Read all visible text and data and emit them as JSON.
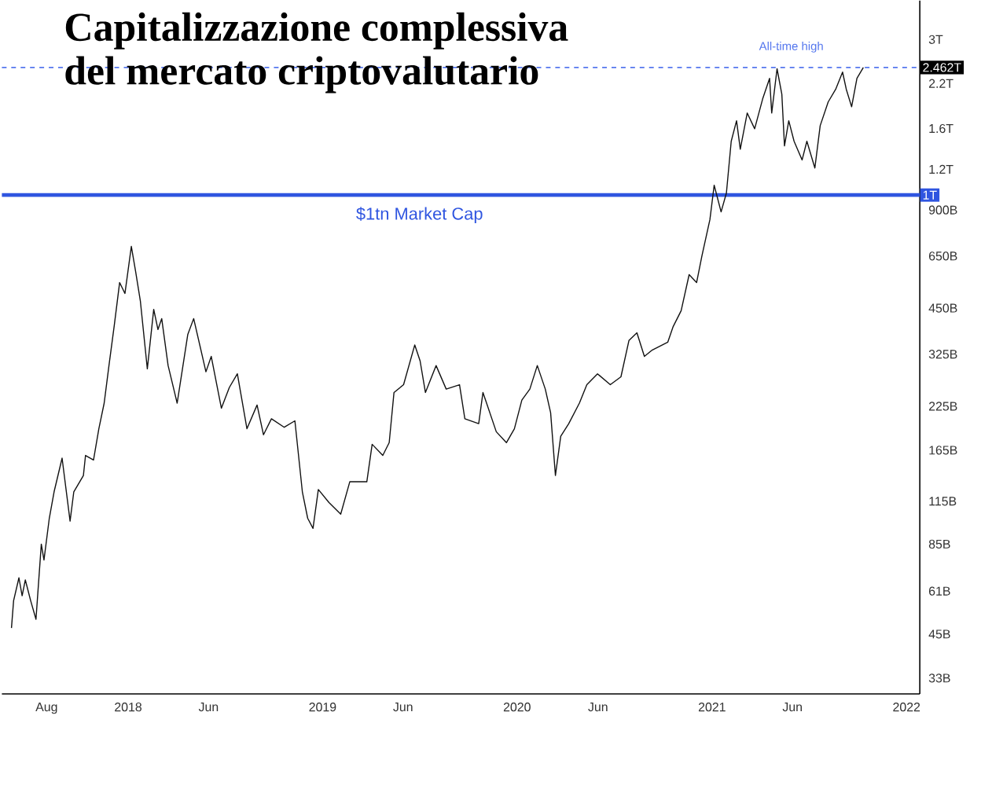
{
  "chart_data": {
    "type": "line",
    "title": "Capitalizzazione complessiva del mercato criptovalutario",
    "log": true,
    "color": "#111111",
    "x": [
      "2017-05-27",
      "2017-05-31",
      "2017-06-10",
      "2017-06-16",
      "2017-06-22",
      "2017-07-02",
      "2017-07-12",
      "2017-07-22",
      "2017-07-27",
      "2017-08-06",
      "2017-08-15",
      "2017-08-30",
      "2017-09-14",
      "2017-09-21",
      "2017-10-09",
      "2017-10-13",
      "2017-10-28",
      "2017-11-07",
      "2017-11-17",
      "2017-11-26",
      "2017-12-06",
      "2017-12-16",
      "2017-12-26",
      "2018-01-07",
      "2018-01-15",
      "2018-01-24",
      "2018-02-06",
      "2018-02-18",
      "2018-02-26",
      "2018-03-05",
      "2018-03-17",
      "2018-04-03",
      "2018-04-23",
      "2018-05-04",
      "2018-05-27",
      "2018-06-06",
      "2018-06-25",
      "2018-07-10",
      "2018-07-25",
      "2018-08-12",
      "2018-08-31",
      "2018-09-12",
      "2018-09-27",
      "2018-10-21",
      "2018-11-10",
      "2018-11-24",
      "2018-12-04",
      "2018-12-14",
      "2018-12-24",
      "2019-01-13",
      "2019-02-04",
      "2019-02-21",
      "2019-03-25",
      "2019-04-04",
      "2019-04-24",
      "2019-05-06",
      "2019-05-15",
      "2019-06-02",
      "2019-06-23",
      "2019-07-03",
      "2019-07-13",
      "2019-08-02",
      "2019-08-21",
      "2019-09-15",
      "2019-09-25",
      "2019-10-21",
      "2019-10-29",
      "2019-11-23",
      "2019-12-12",
      "2019-12-27",
      "2020-01-10",
      "2020-01-25",
      "2020-02-08",
      "2020-02-23",
      "2020-03-04",
      "2020-03-13",
      "2020-03-23",
      "2020-04-07",
      "2020-04-27",
      "2020-05-11",
      "2020-05-31",
      "2020-06-24",
      "2020-07-14",
      "2020-07-29",
      "2020-08-13",
      "2020-08-27",
      "2020-09-11",
      "2020-10-10",
      "2020-10-20",
      "2020-11-04",
      "2020-11-19",
      "2020-12-03",
      "2020-12-13",
      "2020-12-28",
      "2021-01-05",
      "2021-01-18",
      "2021-01-28",
      "2021-02-06",
      "2021-02-16",
      "2021-02-23",
      "2021-03-08",
      "2021-03-22",
      "2021-04-06",
      "2021-04-19",
      "2021-04-23",
      "2021-05-03",
      "2021-05-12",
      "2021-05-17",
      "2021-05-25",
      "2021-06-04",
      "2021-06-19",
      "2021-06-28",
      "2021-07-13",
      "2021-07-23",
      "2021-08-07",
      "2021-08-21",
      "2021-09-03",
      "2021-09-10",
      "2021-09-20",
      "2021-09-30",
      "2021-10-12"
    ],
    "values": [
      47000000000.0,
      57000000000.0,
      67000000000.0,
      59000000000.0,
      66000000000.0,
      57000000000.0,
      50000000000.0,
      85000000000.0,
      76000000000.0,
      102000000000.0,
      123000000000.0,
      156000000000.0,
      100000000000.0,
      123000000000.0,
      138000000000.0,
      159000000000.0,
      154000000000.0,
      192000000000.0,
      230000000000.0,
      300000000000.0,
      399000000000.0,
      539000000000.0,
      499000000000.0,
      696000000000.0,
      583000000000.0,
      472000000000.0,
      293000000000.0,
      446000000000.0,
      387000000000.0,
      418000000000.0,
      300000000000.0,
      230000000000.0,
      374000000000.0,
      418000000000.0,
      287000000000.0,
      320000000000.0,
      222000000000.0,
      257000000000.0,
      283000000000.0,
      192000000000.0,
      227000000000.0,
      184000000000.0,
      206000000000.0,
      194000000000.0,
      203000000000.0,
      123000000000.0,
      102000000000.0,
      95000000000.0,
      125000000000.0,
      114000000000.0,
      105000000000.0,
      132000000000.0,
      132000000000.0,
      172000000000.0,
      159000000000.0,
      174000000000.0,
      248000000000.0,
      262000000000.0,
      347000000000.0,
      310000000000.0,
      248000000000.0,
      300000000000.0,
      254000000000.0,
      262000000000.0,
      206000000000.0,
      199000000000.0,
      248000000000.0,
      188000000000.0,
      174000000000.0,
      192000000000.0,
      235000000000.0,
      254000000000.0,
      300000000000.0,
      254000000000.0,
      215000000000.0,
      138000000000.0,
      182000000000.0,
      199000000000.0,
      230000000000.0,
      262000000000.0,
      283000000000.0,
      262000000000.0,
      277000000000.0,
      358000000000.0,
      378000000000.0,
      320000000000.0,
      335000000000.0,
      354000000000.0,
      395000000000.0,
      442000000000.0,
      570000000000.0,
      539000000000.0,
      651000000000.0,
      841000000000.0,
      1072000000000.0,
      888000000000.0,
      1015000000000.0,
      1462000000000.0,
      1690000000000.0,
      1383000000000.0,
      1785000000000.0,
      1597000000000.0,
      1973000000000.0,
      2280000000000.0,
      1785000000000.0,
      2440000000000.0,
      2040000000000.0,
      1415000000000.0,
      1690000000000.0,
      1462000000000.0,
      1281000000000.0,
      1462000000000.0,
      1211000000000.0,
      1633000000000.0,
      1930000000000.0,
      2110000000000.0,
      2383000000000.0,
      2110000000000.0,
      1866000000000.0,
      2280000000000.0,
      2462000000000.0
    ],
    "xlim": [
      "2017-05-09",
      "2022-01-26"
    ],
    "ylim": [
      29500000000.0,
      3950000000000.0
    ],
    "xticks": [
      {
        "value": "2017-08-01",
        "label": "Aug"
      },
      {
        "value": "2018-01-01",
        "label": "2018"
      },
      {
        "value": "2018-06-01",
        "label": "Jun"
      },
      {
        "value": "2019-01-01",
        "label": "2019"
      },
      {
        "value": "2019-06-01",
        "label": "Jun"
      },
      {
        "value": "2020-01-01",
        "label": "2020"
      },
      {
        "value": "2020-06-01",
        "label": "Jun"
      },
      {
        "value": "2021-01-01",
        "label": "2021"
      },
      {
        "value": "2021-06-01",
        "label": "Jun"
      },
      {
        "value": "2022-01-01",
        "label": "2022"
      }
    ],
    "yticks": [
      {
        "value": 33000000000.0,
        "label": "33B"
      },
      {
        "value": 45000000000.0,
        "label": "45B"
      },
      {
        "value": 61000000000.0,
        "label": "61B"
      },
      {
        "value": 85000000000.0,
        "label": "85B"
      },
      {
        "value": 115000000000.0,
        "label": "115B"
      },
      {
        "value": 165000000000.0,
        "label": "165B"
      },
      {
        "value": 225000000000.0,
        "label": "225B"
      },
      {
        "value": 325000000000.0,
        "label": "325B"
      },
      {
        "value": 450000000000.0,
        "label": "450B"
      },
      {
        "value": 650000000000.0,
        "label": "650B"
      },
      {
        "value": 900000000000.0,
        "label": "900B"
      },
      {
        "value": 1200000000000.0,
        "label": "1.2T"
      },
      {
        "value": 1600000000000.0,
        "label": "1.6T"
      },
      {
        "value": 2200000000000.0,
        "label": "2.2T"
      },
      {
        "value": 3000000000000.0,
        "label": "3T"
      }
    ],
    "ref_lines": [
      {
        "axis": "y",
        "value": 1000000000000.0,
        "label": "$1tn Market Cap",
        "color": "#2f55e0",
        "line_style": "solid"
      },
      {
        "axis": "y",
        "value": 2462000000000.0,
        "label": "All-time high",
        "color": "#5577ee",
        "line_style": "dashed"
      }
    ],
    "annotations": [
      {
        "text": "1T",
        "y": 1000000000000.0
      },
      {
        "text": "2.462T",
        "y": 2462000000000.0
      }
    ]
  }
}
